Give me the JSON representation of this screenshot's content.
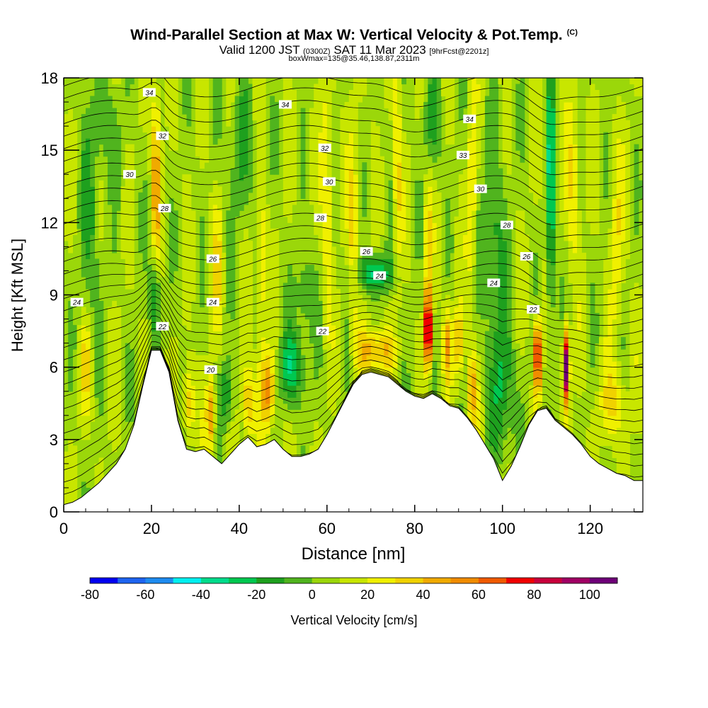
{
  "header": {
    "title": "Wind-Parallel Section at Max W: Vertical Velocity & Pot.Temp.",
    "copyright": "(C)",
    "valid_prefix": "Valid 1200 JST",
    "valid_zulu": "(0300Z)",
    "valid_date": "SAT 11 Mar 2023",
    "forecast": "[9hrFcst@2201z]",
    "box_info": "boxWmax=135@35.46,138.87,2311m"
  },
  "chart_data": {
    "type": "heatmap",
    "xlabel": "Distance [nm]",
    "ylabel": "Height [Kft MSL]",
    "xlim": [
      0,
      132
    ],
    "ylim": [
      0,
      18
    ],
    "x_ticks": [
      0,
      20,
      40,
      60,
      80,
      100,
      120
    ],
    "y_ticks": [
      0,
      3,
      6,
      9,
      12,
      15,
      18
    ],
    "grid": false,
    "colorbar": {
      "label": "Vertical Velocity [cm/s]",
      "orientation": "horizontal",
      "placement": "bottom",
      "ticks": [
        -80,
        -60,
        -40,
        -20,
        0,
        20,
        40,
        60,
        80,
        100
      ],
      "bins": [
        -80,
        -70,
        -60,
        -50,
        -40,
        -30,
        -20,
        -10,
        0,
        10,
        20,
        30,
        40,
        50,
        60,
        70,
        80,
        90,
        100,
        110
      ],
      "colors": [
        "#0000f0",
        "#1e64f0",
        "#1e8cf0",
        "#00f0f0",
        "#00dc8c",
        "#00c850",
        "#1ea01e",
        "#50b41e",
        "#9bd70a",
        "#c8e600",
        "#f0f000",
        "#f0d200",
        "#f0aa00",
        "#f08c00",
        "#f05a00",
        "#f00000",
        "#c8003c",
        "#a00064",
        "#6e0078"
      ]
    },
    "terrain_profile": {
      "distance_nm": [
        0,
        2,
        4,
        6,
        8,
        10,
        12,
        14,
        16,
        18,
        20,
        22,
        24,
        26,
        28,
        30,
        32,
        34,
        36,
        38,
        40,
        42,
        44,
        46,
        48,
        50,
        52,
        54,
        56,
        58,
        60,
        62,
        64,
        66,
        68,
        70,
        72,
        74,
        76,
        78,
        80,
        82,
        84,
        86,
        88,
        90,
        92,
        94,
        96,
        98,
        100,
        102,
        104,
        106,
        108,
        110,
        112,
        114,
        116,
        118,
        120,
        122,
        124,
        126,
        128,
        130,
        132
      ],
      "height_kft": [
        0.3,
        0.4,
        0.6,
        0.9,
        1.2,
        1.6,
        2.0,
        2.6,
        3.6,
        5.2,
        6.7,
        6.7,
        5.8,
        3.8,
        2.6,
        2.5,
        2.6,
        2.3,
        2.0,
        2.4,
        2.8,
        3.1,
        2.7,
        2.8,
        3.0,
        2.6,
        2.3,
        2.3,
        2.4,
        2.6,
        3.2,
        3.9,
        4.6,
        5.3,
        5.7,
        5.8,
        5.7,
        5.6,
        5.3,
        5.0,
        4.8,
        4.7,
        4.9,
        4.7,
        4.4,
        4.3,
        3.9,
        3.4,
        2.8,
        2.2,
        1.3,
        1.9,
        2.7,
        3.6,
        4.2,
        4.3,
        3.8,
        3.5,
        3.2,
        2.8,
        2.3,
        2.0,
        1.8,
        1.6,
        1.5,
        1.3,
        1.3
      ]
    },
    "potential_temperature_contours": {
      "units": "C",
      "labels": [
        {
          "value": "34",
          "x_nm": 19.5,
          "y_kft": 17.4
        },
        {
          "value": "34",
          "x_nm": 50.5,
          "y_kft": 16.9
        },
        {
          "value": "34",
          "x_nm": 92.5,
          "y_kft": 16.3
        },
        {
          "value": "32",
          "x_nm": 22.5,
          "y_kft": 15.6
        },
        {
          "value": "32",
          "x_nm": 59.5,
          "y_kft": 15.1
        },
        {
          "value": "33",
          "x_nm": 91.0,
          "y_kft": 14.8
        },
        {
          "value": "30",
          "x_nm": 15.0,
          "y_kft": 14.0
        },
        {
          "value": "30",
          "x_nm": 60.5,
          "y_kft": 13.7
        },
        {
          "value": "30",
          "x_nm": 95.0,
          "y_kft": 13.4
        },
        {
          "value": "28",
          "x_nm": 23.0,
          "y_kft": 12.6
        },
        {
          "value": "28",
          "x_nm": 58.5,
          "y_kft": 12.2
        },
        {
          "value": "28",
          "x_nm": 101.0,
          "y_kft": 11.9
        },
        {
          "value": "26",
          "x_nm": 34.0,
          "y_kft": 10.5
        },
        {
          "value": "26",
          "x_nm": 69.0,
          "y_kft": 10.8
        },
        {
          "value": "26",
          "x_nm": 105.5,
          "y_kft": 10.6
        },
        {
          "value": "24",
          "x_nm": 3.0,
          "y_kft": 8.7
        },
        {
          "value": "24",
          "x_nm": 34.0,
          "y_kft": 8.7
        },
        {
          "value": "24",
          "x_nm": 72.0,
          "y_kft": 9.8
        },
        {
          "value": "24",
          "x_nm": 98.0,
          "y_kft": 9.5
        },
        {
          "value": "22",
          "x_nm": 22.5,
          "y_kft": 7.7
        },
        {
          "value": "22",
          "x_nm": 59.0,
          "y_kft": 7.5
        },
        {
          "value": "22",
          "x_nm": 107.0,
          "y_kft": 8.4
        },
        {
          "value": "20",
          "x_nm": 33.5,
          "y_kft": 5.9
        }
      ]
    }
  }
}
